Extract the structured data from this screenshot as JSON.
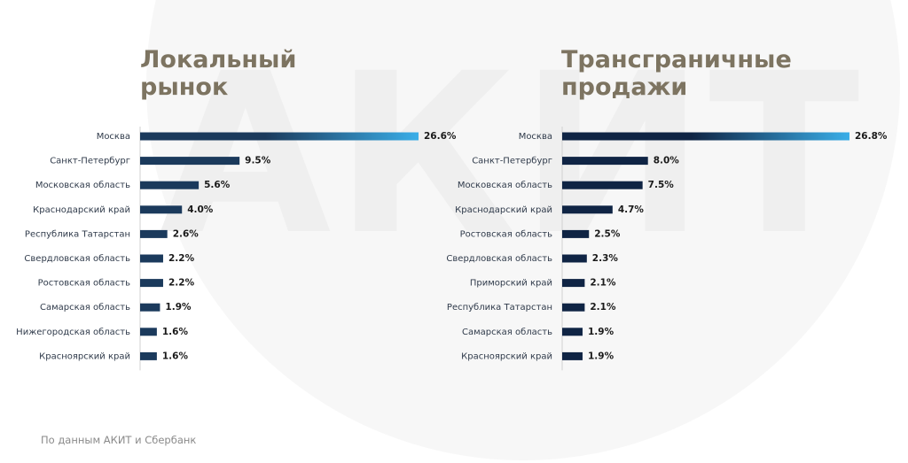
{
  "watermark_text": "АКИТ",
  "footnote": "По данным АКИТ и Сбербанк",
  "colors": {
    "title": "#7d7461",
    "bar_dark": "#1b3a5c",
    "bar_darker": "#0f2444",
    "bar_light": "#3aaee8"
  },
  "chart_data": [
    {
      "type": "bar",
      "orientation": "horizontal",
      "title": "Локальный рынок",
      "title_lines": [
        "Локальный",
        "рынок"
      ],
      "categories": [
        "Москва",
        "Санкт-Петербург",
        "Московская область",
        "Краснодарский край",
        "Республика Татарстан",
        "Свердловская область",
        "Ростовская область",
        "Самарская область",
        "Нижегородская область",
        "Красноярский край"
      ],
      "values": [
        26.6,
        9.5,
        5.6,
        4.0,
        2.6,
        2.2,
        2.2,
        1.9,
        1.6,
        1.6
      ],
      "value_labels": [
        "26.6%",
        "9.5%",
        "5.6%",
        "4.0%",
        "2.6%",
        "2.2%",
        "2.2%",
        "1.9%",
        "1.6%",
        "1.6%"
      ],
      "xlim": [
        0,
        26.6
      ],
      "unit": "%"
    },
    {
      "type": "bar",
      "orientation": "horizontal",
      "title": "Трансграничные продажи",
      "title_lines": [
        "Трансграничные",
        "продажи"
      ],
      "categories": [
        "Москва",
        "Санкт-Петербург",
        "Московская область",
        "Краснодарский край",
        "Ростовская область",
        "Свердловская область",
        "Приморский край",
        "Республика Татарстан",
        "Самарская область",
        "Красноярский край"
      ],
      "values": [
        26.8,
        8.0,
        7.5,
        4.7,
        2.5,
        2.3,
        2.1,
        2.1,
        1.9,
        1.9
      ],
      "value_labels": [
        "26.8%",
        "8.0%",
        "7.5%",
        "4.7%",
        "2.5%",
        "2.3%",
        "2.1%",
        "2.1%",
        "1.9%",
        "1.9%"
      ],
      "xlim": [
        0,
        26.8
      ],
      "unit": "%"
    }
  ]
}
